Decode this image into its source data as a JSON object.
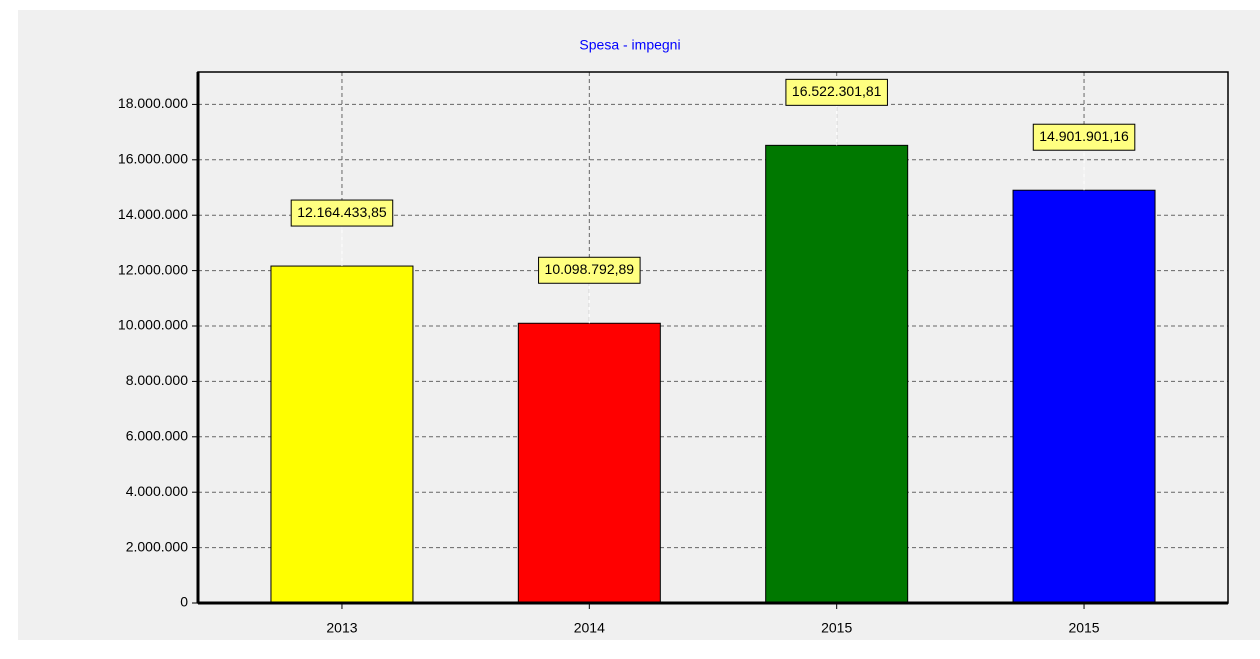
{
  "chart_data": {
    "type": "bar",
    "title": "Spesa - impegni",
    "categories": [
      "2013",
      "2014",
      "2015",
      "2015"
    ],
    "values": [
      12164433.85,
      10098792.89,
      16522301.81,
      14901901.16
    ],
    "value_labels": [
      "12.164.433,85",
      "10.098.792,89",
      "16.522.301,81",
      "14.901.901,16"
    ],
    "colors": [
      "#ffff00",
      "#ff0000",
      "#007800",
      "#0000ff"
    ],
    "ylim": [
      0,
      19170000
    ],
    "yticks": [
      0,
      {
        "value": 2000000,
        "label": "2.000.000"
      },
      {
        "value": 4000000,
        "label": "4.000.000"
      },
      {
        "value": 6000000,
        "label": "6.000.000"
      },
      {
        "value": 8000000,
        "label": "8.000.000"
      },
      {
        "value": 10000000,
        "label": "10.000.000"
      },
      {
        "value": 12000000,
        "label": "12.000.000"
      },
      {
        "value": 14000000,
        "label": "14.000.000"
      },
      {
        "value": 16000000,
        "label": "16.000.000"
      },
      {
        "value": 18000000,
        "label": "18.000.000"
      }
    ],
    "grid": true
  }
}
